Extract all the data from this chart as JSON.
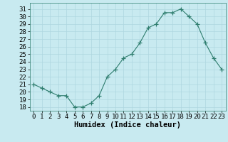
{
  "xlabel": "Humidex (Indice chaleur)",
  "x_values": [
    0,
    1,
    2,
    3,
    4,
    5,
    6,
    7,
    8,
    9,
    10,
    11,
    12,
    13,
    14,
    15,
    16,
    17,
    18,
    19,
    20,
    21,
    22,
    23
  ],
  "y_values": [
    21,
    20.5,
    20,
    19.5,
    19.5,
    18,
    18,
    18.5,
    19.5,
    22,
    23,
    24.5,
    25,
    26.5,
    28.5,
    29,
    30.5,
    30.5,
    31,
    30,
    29,
    26.5,
    24.5,
    23
  ],
  "line_color": "#2e7d6e",
  "marker": "+",
  "bg_color": "#c8eaf0",
  "grid_color": "#aed6df",
  "ylim": [
    17.5,
    31.8
  ],
  "yticks": [
    18,
    19,
    20,
    21,
    22,
    23,
    24,
    25,
    26,
    27,
    28,
    29,
    30,
    31
  ],
  "xticks": [
    0,
    1,
    2,
    3,
    4,
    5,
    6,
    7,
    8,
    9,
    10,
    11,
    12,
    13,
    14,
    15,
    16,
    17,
    18,
    19,
    20,
    21,
    22,
    23
  ],
  "tick_fontsize": 6.5,
  "xlabel_fontsize": 7.5
}
